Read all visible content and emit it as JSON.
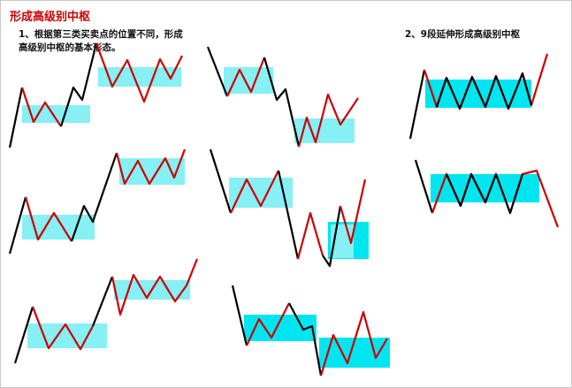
{
  "title": "形成高级别中枢",
  "notes": {
    "left_line1": "1、根据第三类买卖点的位置不同，形成",
    "left_line2": "高级别中枢的基本形态。",
    "right": "2、9段延伸形成高级别中枢"
  },
  "colors": {
    "up_segment": "#cc0000",
    "down_segment": "#000000",
    "zone_light": "#86f0f4",
    "zone_strong": "#00e6f0",
    "title": "#cc0000"
  }
}
